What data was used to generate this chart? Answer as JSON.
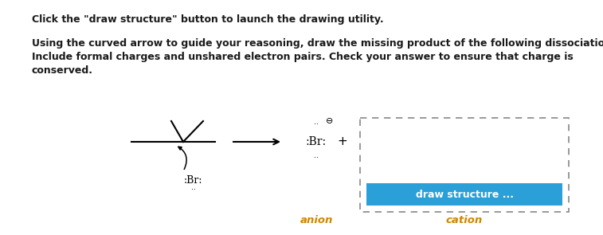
{
  "bg_color": "#ffffff",
  "title_line1": "Click the \"draw structure\" button to launch the drawing utility.",
  "body_line1": "Using the curved arrow to guide your reasoning, draw the missing product of the following dissociation.",
  "body_line2": "Include formal charges and unshared electron pairs. Check your answer to ensure that charge is",
  "body_line3": "conserved.",
  "anion_label": "anion",
  "cation_label": "cation",
  "button_text": "draw structure ...",
  "button_color": "#2b9fd8",
  "button_text_color": "#ffffff",
  "text_color": "#1a1a1a",
  "anion_cation_color": "#cc8800"
}
